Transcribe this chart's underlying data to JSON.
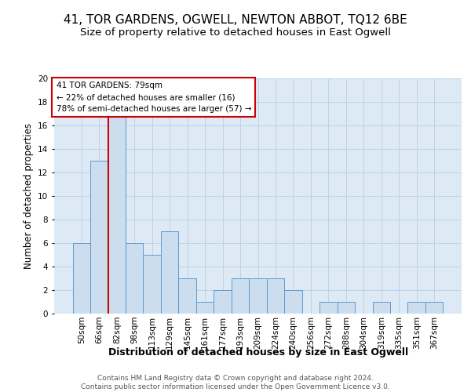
{
  "title": "41, TOR GARDENS, OGWELL, NEWTON ABBOT, TQ12 6BE",
  "subtitle": "Size of property relative to detached houses in East Ogwell",
  "xlabel": "Distribution of detached houses by size in East Ogwell",
  "ylabel": "Number of detached properties",
  "bin_labels": [
    "50sqm",
    "66sqm",
    "82sqm",
    "98sqm",
    "113sqm",
    "129sqm",
    "145sqm",
    "161sqm",
    "177sqm",
    "193sqm",
    "209sqm",
    "224sqm",
    "240sqm",
    "256sqm",
    "272sqm",
    "288sqm",
    "304sqm",
    "319sqm",
    "335sqm",
    "351sqm",
    "367sqm"
  ],
  "bar_heights": [
    6,
    13,
    17,
    6,
    5,
    7,
    3,
    1,
    2,
    3,
    3,
    3,
    2,
    0,
    1,
    1,
    0,
    1,
    0,
    1,
    1
  ],
  "bar_color": "#ccdded",
  "bar_edgecolor": "#5b9bd5",
  "grid_color": "#b8cfe0",
  "bg_color": "#ddeaf6",
  "vline_color": "#cc0000",
  "annotation_text": "41 TOR GARDENS: 79sqm\n← 22% of detached houses are smaller (16)\n78% of semi-detached houses are larger (57) →",
  "annotation_box_edgecolor": "#cc0000",
  "ylim": [
    0,
    20
  ],
  "yticks": [
    0,
    2,
    4,
    6,
    8,
    10,
    12,
    14,
    16,
    18,
    20
  ],
  "footer": "Contains HM Land Registry data © Crown copyright and database right 2024.\nContains public sector information licensed under the Open Government Licence v3.0.",
  "title_fontsize": 11,
  "subtitle_fontsize": 9.5,
  "xlabel_fontsize": 9,
  "ylabel_fontsize": 8.5,
  "tick_fontsize": 7.5,
  "footer_fontsize": 6.5,
  "vline_x": 1.5
}
